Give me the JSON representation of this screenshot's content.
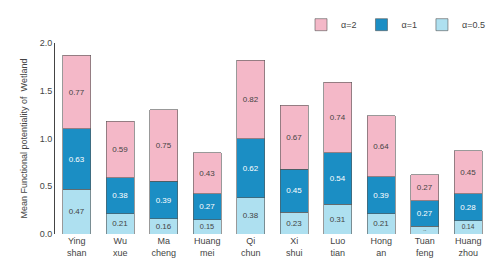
{
  "chart_data": {
    "type": "bar",
    "stacked": true,
    "categories": [
      "Ying\nshan",
      "Wu\nxue",
      "Ma\ncheng",
      "Huang\nmei",
      "Qi\nchun",
      "Xi\nshui",
      "Luo\ntian",
      "Hong\nan",
      "Tuan\nfeng",
      "Huang\nzhou"
    ],
    "series": [
      {
        "name": "α=0.5",
        "color": "#aee0f0",
        "values": [
          0.47,
          0.21,
          0.16,
          0.15,
          0.38,
          0.23,
          0.31,
          0.21,
          0.08,
          0.14
        ]
      },
      {
        "name": "α=1",
        "color": "#1b8ec4",
        "values": [
          0.63,
          0.38,
          0.39,
          0.27,
          0.62,
          0.45,
          0.54,
          0.39,
          0.27,
          0.28
        ]
      },
      {
        "name": "α=2",
        "color": "#f4b8c8",
        "values": [
          0.77,
          0.59,
          0.75,
          0.43,
          0.82,
          0.67,
          0.74,
          0.64,
          0.27,
          0.45
        ]
      }
    ],
    "ylabel": "Mean Functional potentiality of  Wetland",
    "ylim": [
      0,
      2.0
    ],
    "yticks": [
      {
        "value": 0,
        "label": "0.0"
      },
      0.5,
      {
        "value": 1,
        "label": "1.0"
      },
      1.5,
      {
        "value": 2,
        "label": "2.0"
      }
    ],
    "data_labels": true,
    "legend": "upper right",
    "grid": false
  }
}
